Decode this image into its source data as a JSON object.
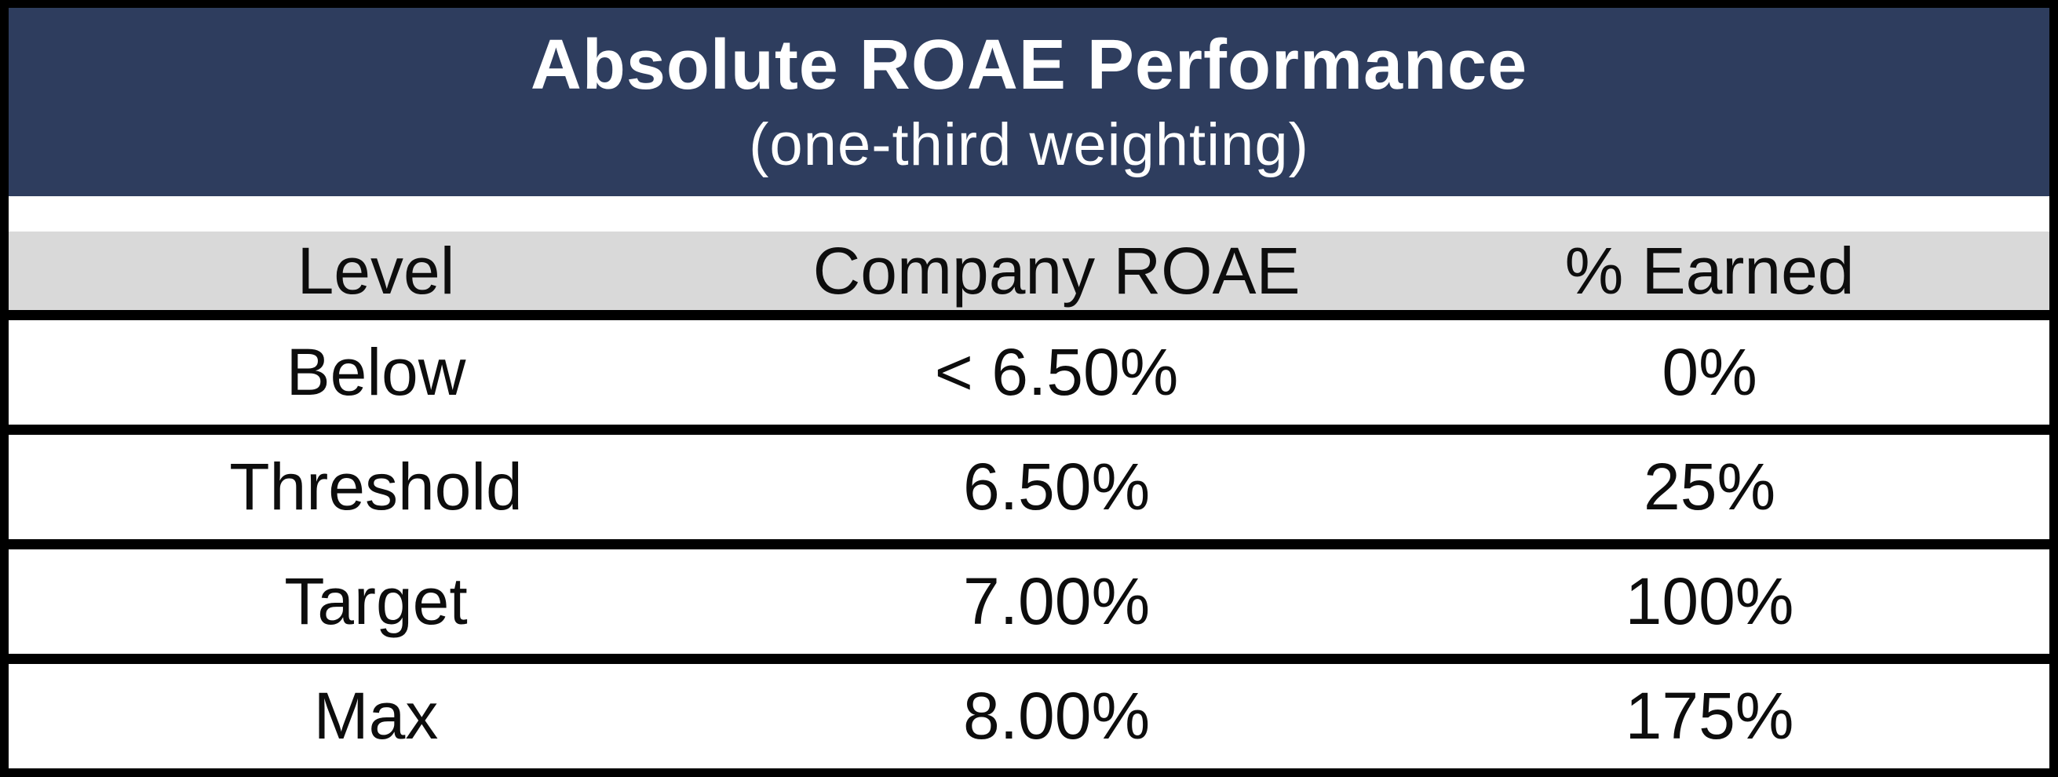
{
  "chart_data": {
    "type": "table",
    "title": "Absolute ROAE Performance",
    "subtitle": "(one-third weighting)",
    "columns": [
      "Level",
      "Company ROAE",
      "% Earned"
    ],
    "rows": [
      [
        "Below",
        "< 6.50%",
        "0%"
      ],
      [
        "Threshold",
        "6.50%",
        "25%"
      ],
      [
        "Target",
        "7.00%",
        "100%"
      ],
      [
        "Max",
        "8.00%",
        "175%"
      ]
    ],
    "layout_hints": {
      "weighting_note": "one-third weighting",
      "grid": "horizontal rules only",
      "columns_alignment": "center"
    },
    "colors": {
      "title_bg": "#2E3D5E",
      "title_text": "#FFFFFF",
      "column_header_bg": "#D9D9D9",
      "body_bg": "#FFFFFF",
      "body_text": "#0D0D0D",
      "border": "#000000"
    }
  }
}
